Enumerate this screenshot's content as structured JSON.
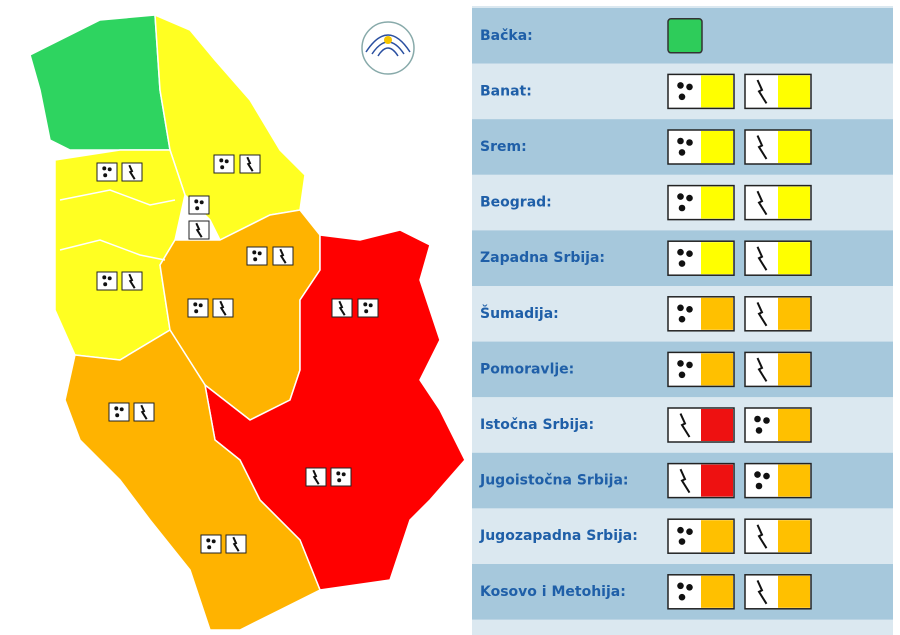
{
  "regions": [
    {
      "name": "Bačka:",
      "warnings": [
        {
          "color": "#2ecc5a"
        }
      ]
    },
    {
      "name": "Banat:",
      "warnings": [
        {
          "icon": "hail",
          "color": "#ffff00"
        },
        {
          "icon": "lightning",
          "color": "#ffff00"
        }
      ]
    },
    {
      "name": "Srem:",
      "warnings": [
        {
          "icon": "hail",
          "color": "#ffff00"
        },
        {
          "icon": "lightning",
          "color": "#ffff00"
        }
      ]
    },
    {
      "name": "Beograd:",
      "warnings": [
        {
          "icon": "hail",
          "color": "#ffff00"
        },
        {
          "icon": "lightning",
          "color": "#ffff00"
        }
      ]
    },
    {
      "name": "Zapadna Srbija:",
      "warnings": [
        {
          "icon": "hail",
          "color": "#ffff00"
        },
        {
          "icon": "lightning",
          "color": "#ffff00"
        }
      ]
    },
    {
      "name": "Šumadija:",
      "warnings": [
        {
          "icon": "hail",
          "color": "#ffc000"
        },
        {
          "icon": "lightning",
          "color": "#ffc000"
        }
      ]
    },
    {
      "name": "Pomoravlje:",
      "warnings": [
        {
          "icon": "hail",
          "color": "#ffc000"
        },
        {
          "icon": "lightning",
          "color": "#ffc000"
        }
      ]
    },
    {
      "name": "Istočna Srbija:",
      "warnings": [
        {
          "icon": "lightning",
          "color": "#ee1111"
        },
        {
          "icon": "hail",
          "color": "#ffc000"
        }
      ]
    },
    {
      "name": "Jugoistočna Srbija:",
      "warnings": [
        {
          "icon": "lightning",
          "color": "#ee1111"
        },
        {
          "icon": "hail",
          "color": "#ffc000"
        }
      ]
    },
    {
      "name": "Jugozapadna Srbija:",
      "warnings": [
        {
          "icon": "hail",
          "color": "#ffc000"
        },
        {
          "icon": "lightning",
          "color": "#ffc000"
        }
      ]
    },
    {
      "name": "Kosovo i Metohija:",
      "warnings": [
        {
          "icon": "hail",
          "color": "#ffc000"
        },
        {
          "icon": "lightning",
          "color": "#ffc000"
        }
      ]
    }
  ]
}
